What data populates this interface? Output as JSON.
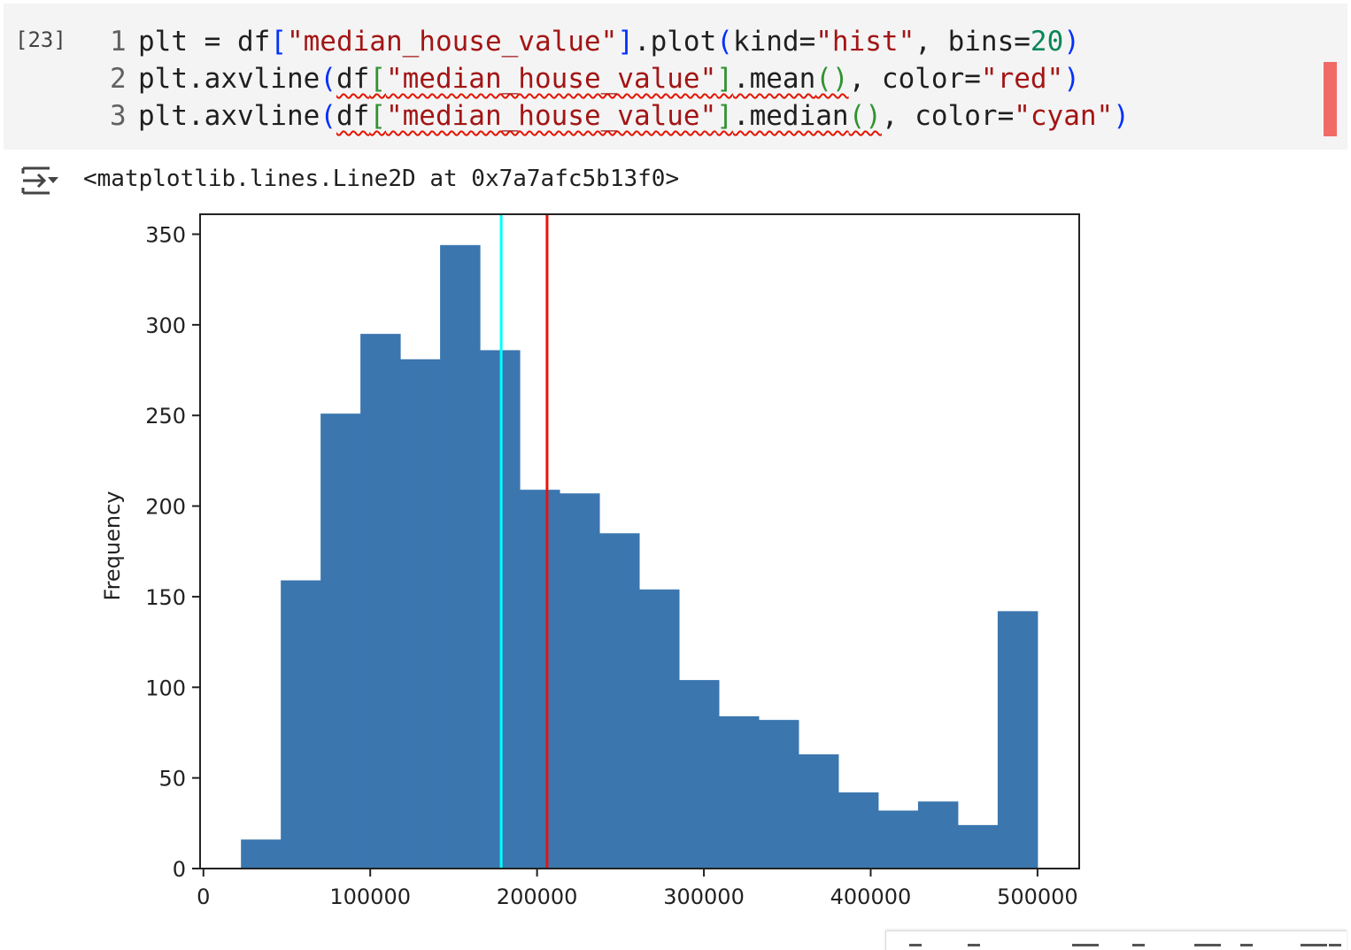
{
  "cell": {
    "execution_count": "[23]",
    "code_lines": [
      {
        "number": "1",
        "tokens": [
          {
            "t": "plt = df",
            "c": "plain"
          },
          {
            "t": "[",
            "c": "br1"
          },
          {
            "t": "\"median_house_value\"",
            "c": "str"
          },
          {
            "t": "]",
            "c": "br1"
          },
          {
            "t": ".plot",
            "c": "plain"
          },
          {
            "t": "(",
            "c": "br1"
          },
          {
            "t": "kind=",
            "c": "plain"
          },
          {
            "t": "\"hist\"",
            "c": "str"
          },
          {
            "t": ", bins=",
            "c": "plain"
          },
          {
            "t": "20",
            "c": "num"
          },
          {
            "t": ")",
            "c": "br1"
          }
        ]
      },
      {
        "number": "2",
        "tokens": [
          {
            "t": "plt.axvline",
            "c": "plain"
          },
          {
            "t": "(",
            "c": "br1"
          },
          {
            "t": "df",
            "c": "plain",
            "squiggle": true
          },
          {
            "t": "[",
            "c": "br2",
            "squiggle": true
          },
          {
            "t": "\"median_house_value\"",
            "c": "str",
            "squiggle": true
          },
          {
            "t": "]",
            "c": "br2",
            "squiggle": true
          },
          {
            "t": ".mean",
            "c": "plain",
            "squiggle": true
          },
          {
            "t": "()",
            "c": "br2",
            "squiggle": true
          },
          {
            "t": ", color=",
            "c": "plain"
          },
          {
            "t": "\"red\"",
            "c": "str"
          },
          {
            "t": ")",
            "c": "br1"
          }
        ]
      },
      {
        "number": "3",
        "tokens": [
          {
            "t": "plt.axvline",
            "c": "plain"
          },
          {
            "t": "(",
            "c": "br1"
          },
          {
            "t": "df",
            "c": "plain",
            "squiggle": true
          },
          {
            "t": "[",
            "c": "br2",
            "squiggle": true
          },
          {
            "t": "\"median_house_value\"",
            "c": "str",
            "squiggle": true
          },
          {
            "t": "]",
            "c": "br2",
            "squiggle": true
          },
          {
            "t": ".median",
            "c": "plain",
            "squiggle": true
          },
          {
            "t": "()",
            "c": "br2",
            "squiggle": true
          },
          {
            "t": ", color=",
            "c": "plain"
          },
          {
            "t": "\"cyan\"",
            "c": "str"
          },
          {
            "t": ")",
            "c": "br1"
          }
        ]
      }
    ]
  },
  "output": {
    "toggle_icon": "output-collapse-icon",
    "text": "<matplotlib.lines.Line2D at 0x7a7afc5b13f0>"
  },
  "chart_data": {
    "type": "bar",
    "subtype": "histogram",
    "bins": 20,
    "bin_range": [
      22500,
      500000
    ],
    "values": [
      16,
      159,
      251,
      295,
      281,
      344,
      286,
      209,
      207,
      185,
      154,
      104,
      84,
      82,
      63,
      42,
      32,
      37,
      24,
      142
    ],
    "title": "",
    "xlabel": "",
    "ylabel": "Frequency",
    "xlim": [
      -2000,
      525000
    ],
    "ylim": [
      0,
      361
    ],
    "x_ticks": [
      0,
      100000,
      200000,
      300000,
      400000,
      500000
    ],
    "y_ticks": [
      0,
      50,
      100,
      150,
      200,
      250,
      300,
      350
    ],
    "vlines": [
      {
        "x": 178500,
        "color": "#00ffff"
      },
      {
        "x": 206000,
        "color": "#e8120c"
      }
    ],
    "bar_color": "#3b76af",
    "grid": false,
    "legend": false
  },
  "toolbar": {
    "icons": [
      "arrow-up-icon",
      "arrow-down-icon",
      "link-icon",
      "comment-icon",
      "settings-icon",
      "mirror-icon",
      "delete-icon",
      "more-icon"
    ]
  }
}
